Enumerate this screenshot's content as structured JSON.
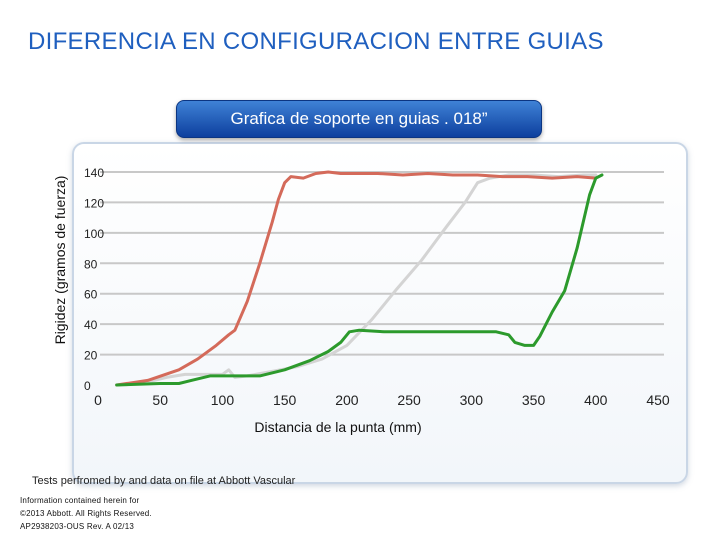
{
  "header": {
    "title": "DIFERENCIA EN CONFIGURACION ENTRE GUIAS"
  },
  "chart_data": {
    "type": "line",
    "title": "Grafica de soporte en guias . 018”",
    "xlabel": "Distancia de la punta (mm)",
    "ylabel": "Rigidez (gramos de fuerza)",
    "xlim": [
      0,
      450
    ],
    "ylim": [
      0,
      140
    ],
    "x_ticks": [
      "0",
      "50",
      "100",
      "150",
      "200",
      "250",
      "300",
      "350",
      "400",
      "450"
    ],
    "y_ticks": [
      "0",
      "20",
      "40",
      "60",
      "80",
      "100",
      "120",
      "140"
    ],
    "grid": "horizontal",
    "series": [
      {
        "color": "#d46a5a",
        "points": [
          [
            15,
            0
          ],
          [
            40,
            3
          ],
          [
            65,
            10
          ],
          [
            80,
            17
          ],
          [
            95,
            26
          ],
          [
            105,
            33
          ],
          [
            110,
            36
          ],
          [
            120,
            55
          ],
          [
            130,
            80
          ],
          [
            140,
            107
          ],
          [
            145,
            122
          ],
          [
            150,
            133
          ],
          [
            155,
            137
          ],
          [
            165,
            136
          ],
          [
            175,
            139
          ],
          [
            185,
            140
          ],
          [
            195,
            139
          ],
          [
            210,
            139
          ],
          [
            225,
            139
          ],
          [
            245,
            138
          ],
          [
            265,
            139
          ],
          [
            285,
            138
          ],
          [
            305,
            138
          ],
          [
            325,
            137
          ],
          [
            345,
            137
          ],
          [
            365,
            136
          ],
          [
            385,
            137
          ],
          [
            400,
            136
          ]
        ]
      },
      {
        "color": "#d4d4d4",
        "points": [
          [
            15,
            0
          ],
          [
            40,
            2
          ],
          [
            55,
            5
          ],
          [
            70,
            7
          ],
          [
            85,
            7
          ],
          [
            100,
            7
          ],
          [
            105,
            10
          ],
          [
            110,
            5
          ],
          [
            120,
            6
          ],
          [
            140,
            9
          ],
          [
            160,
            12
          ],
          [
            180,
            17
          ],
          [
            200,
            26
          ],
          [
            220,
            43
          ],
          [
            240,
            63
          ],
          [
            260,
            82
          ],
          [
            280,
            104
          ],
          [
            295,
            120
          ],
          [
            305,
            133
          ],
          [
            315,
            136
          ],
          [
            330,
            138
          ],
          [
            350,
            138
          ],
          [
            370,
            137
          ],
          [
            390,
            138
          ],
          [
            400,
            138
          ]
        ]
      },
      {
        "color": "#2c9a2c",
        "points": [
          [
            15,
            0
          ],
          [
            50,
            1
          ],
          [
            65,
            1
          ],
          [
            75,
            3
          ],
          [
            90,
            6
          ],
          [
            110,
            6
          ],
          [
            130,
            6
          ],
          [
            150,
            10
          ],
          [
            170,
            16
          ],
          [
            185,
            22
          ],
          [
            195,
            28
          ],
          [
            202,
            35
          ],
          [
            210,
            36
          ],
          [
            230,
            35
          ],
          [
            260,
            35
          ],
          [
            290,
            35
          ],
          [
            320,
            35
          ],
          [
            330,
            33
          ],
          [
            335,
            28
          ],
          [
            343,
            26
          ],
          [
            350,
            26
          ],
          [
            355,
            32
          ],
          [
            365,
            48
          ],
          [
            375,
            62
          ],
          [
            385,
            90
          ],
          [
            395,
            125
          ],
          [
            400,
            136
          ],
          [
            405,
            138
          ]
        ]
      }
    ]
  },
  "footer": {
    "tests_note": "Tests perfromed by and data on file at Abbott Vascular",
    "legal_lines": [
      "Information contained herein for",
      "©2013 Abbott. All Rights Reserved.",
      "AP2938203-OUS Rev. A 02/13"
    ]
  }
}
